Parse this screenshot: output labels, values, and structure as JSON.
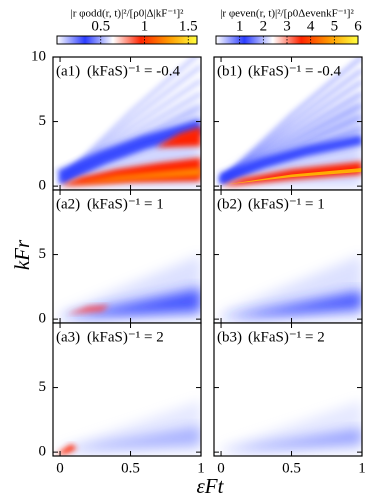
{
  "chart_data": [
    {
      "type": "colorbar",
      "title": "|r φodd(r, t)|²/[ρ0|Δ|kF⁻¹]²",
      "xlim": [
        0,
        1.6
      ],
      "xticks": [
        0.5,
        1,
        1.5
      ],
      "colormap": [
        "#ffffff",
        "#2a3cff",
        "#ffffff",
        "#ff2400",
        "#ff9a00",
        "#ffff40"
      ]
    },
    {
      "type": "colorbar",
      "title": "|r φeven(r, t)|²/[ρ0ΔevenkF⁻¹]²",
      "xlim": [
        0,
        6
      ],
      "xticks": [
        1,
        2,
        3,
        4,
        5,
        6
      ],
      "colormap": [
        "#ffffff",
        "#2a3cff",
        "#ffffff",
        "#ff2400",
        "#ff9a00",
        "#ffff40"
      ]
    },
    {
      "type": "heatmap",
      "label": "(a1)",
      "parameter": "(kFaS)⁻¹ = -0.4",
      "xlim": [
        -0.05,
        1
      ],
      "ylim": [
        -0.3,
        10
      ],
      "xticks": [
        0,
        0.5,
        1
      ],
      "yticks": [
        0,
        5,
        10
      ]
    },
    {
      "type": "heatmap",
      "label": "(b1)",
      "parameter": "(kFaS)⁻¹ = -0.4",
      "xlim": [
        -0.05,
        1
      ],
      "ylim": [
        -0.3,
        10
      ],
      "xticks": [
        0,
        0.5,
        1
      ],
      "yticks": [
        0,
        5,
        10
      ]
    },
    {
      "type": "heatmap",
      "label": "(a2)",
      "parameter": "(kFaS)⁻¹ = 1",
      "xlim": [
        -0.05,
        1
      ],
      "ylim": [
        -0.3,
        10
      ],
      "xticks": [
        0,
        0.5,
        1
      ],
      "yticks": [
        0,
        5
      ]
    },
    {
      "type": "heatmap",
      "label": "(b2)",
      "parameter": "(kFaS)⁻¹ = 1",
      "xlim": [
        -0.05,
        1
      ],
      "ylim": [
        -0.3,
        10
      ],
      "xticks": [
        0,
        0.5,
        1
      ],
      "yticks": [
        0,
        5
      ]
    },
    {
      "type": "heatmap",
      "label": "(a3)",
      "parameter": "(kFaS)⁻¹ = 2",
      "xlim": [
        -0.05,
        1
      ],
      "ylim": [
        -0.3,
        10
      ],
      "xticks": [
        0,
        0.5,
        1
      ],
      "yticks": [
        0,
        5
      ]
    },
    {
      "type": "heatmap",
      "label": "(b3)",
      "parameter": "(kFaS)⁻¹ = 2",
      "xlim": [
        -0.05,
        1
      ],
      "ylim": [
        -0.3,
        10
      ],
      "xticks": [
        0,
        0.5,
        1
      ],
      "yticks": [
        0,
        5
      ]
    }
  ],
  "x_label": "εFt",
  "y_label": "kFr"
}
